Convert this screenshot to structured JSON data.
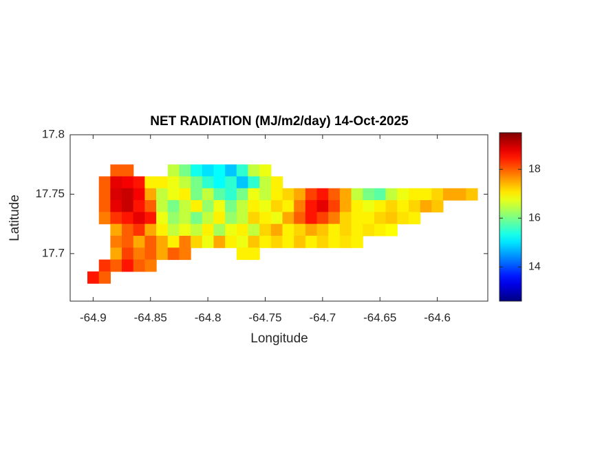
{
  "chart_data": {
    "type": "heatmap",
    "title": "NET RADIATION (MJ/m2/day) 14-Oct-2025",
    "xlabel": "Longitude",
    "ylabel": "Latitude",
    "xlim": [
      -64.92,
      -64.556
    ],
    "ylim": [
      17.66,
      17.8
    ],
    "xticks": [
      -64.9,
      -64.85,
      -64.8,
      -64.75,
      -64.7,
      -64.65,
      -64.6
    ],
    "yticks": [
      17.7,
      17.75,
      17.8
    ],
    "colormap": "jet",
    "clim": [
      12.6,
      19.5
    ],
    "colorbar_ticks": [
      14,
      16,
      18
    ],
    "grid": false,
    "x": [
      -64.9,
      -64.89,
      -64.88,
      -64.87,
      -64.86,
      -64.85,
      -64.84,
      -64.83,
      -64.82,
      -64.81,
      -64.8,
      -64.79,
      -64.78,
      -64.77,
      -64.76,
      -64.75,
      -64.74,
      -64.73,
      -64.72,
      -64.71,
      -64.7,
      -64.69,
      -64.68,
      -64.67,
      -64.66,
      -64.65,
      -64.64,
      -64.63,
      -64.62,
      -64.61,
      -64.6,
      -64.59,
      -64.58,
      -64.57,
      -64.56
    ],
    "y": [
      17.77,
      17.76,
      17.75,
      17.74,
      17.73,
      17.72,
      17.71,
      17.7,
      17.69,
      17.68
    ],
    "z": [
      [
        null,
        null,
        18,
        18,
        null,
        null,
        null,
        16.5,
        16,
        15.3,
        15,
        15.2,
        14.8,
        15.5,
        16.5,
        16.8,
        null,
        null,
        null,
        null,
        null,
        null,
        null,
        null,
        null,
        null,
        null,
        null,
        null,
        null,
        null,
        null,
        null,
        null,
        null
      ],
      [
        null,
        18,
        18.8,
        18.7,
        18.5,
        17,
        17,
        16.8,
        16.5,
        16,
        15.5,
        15.2,
        15.5,
        14.8,
        15.5,
        16.5,
        17,
        null,
        null,
        null,
        null,
        null,
        null,
        null,
        null,
        null,
        null,
        null,
        null,
        null,
        null,
        null,
        null,
        null,
        null
      ],
      [
        null,
        18,
        18.9,
        19,
        18.7,
        17.5,
        16.5,
        16.8,
        17,
        16,
        16.5,
        15.8,
        15.5,
        16,
        16.8,
        16.5,
        17,
        17.2,
        17.5,
        18.2,
        18.5,
        18,
        17.5,
        16.5,
        16,
        15.8,
        16.5,
        16.8,
        17,
        17,
        17.2,
        17.5,
        17.5,
        17.3,
        null
      ],
      [
        null,
        18,
        18.8,
        19,
        18.5,
        18,
        16.5,
        16,
        16.5,
        17,
        16.2,
        16.8,
        16,
        16.5,
        17,
        16.8,
        17.2,
        17,
        17.8,
        18.5,
        18.8,
        18.2,
        17.5,
        17,
        16.8,
        17,
        17.2,
        17,
        17.2,
        17.5,
        17.3,
        null,
        null,
        null,
        null
      ],
      [
        null,
        17.8,
        18.3,
        18.5,
        18.8,
        18.5,
        16.8,
        16.2,
        16.5,
        16,
        16.5,
        17,
        16.2,
        16.5,
        17.2,
        17,
        16.8,
        17.5,
        18,
        18.5,
        18.2,
        17.8,
        17.2,
        17,
        17,
        17.2,
        17.3,
        17.1,
        17,
        null,
        null,
        null,
        null,
        null,
        null
      ],
      [
        null,
        null,
        17.5,
        18,
        18.3,
        17.5,
        17,
        16.5,
        16.8,
        16.5,
        17,
        16.3,
        16.8,
        17,
        16.5,
        17.2,
        17.5,
        17,
        17.2,
        17.5,
        17.3,
        17,
        17.2,
        17,
        17.1,
        17,
        16.9,
        null,
        null,
        null,
        null,
        null,
        null,
        null,
        null
      ],
      [
        null,
        null,
        17.8,
        18,
        17.5,
        18,
        17.5,
        17,
        17.8,
        17.2,
        16.8,
        17.5,
        17,
        16.8,
        17.3,
        17,
        17.2,
        17,
        17.3,
        17,
        17.2,
        17,
        17.1,
        17,
        null,
        null,
        null,
        null,
        null,
        null,
        null,
        null,
        null,
        null,
        null
      ],
      [
        null,
        null,
        17.5,
        18.2,
        17.8,
        18,
        17.5,
        18,
        17.8,
        null,
        null,
        null,
        null,
        17,
        17,
        null,
        null,
        null,
        null,
        null,
        null,
        null,
        null,
        null,
        null,
        null,
        null,
        null,
        null,
        null,
        null,
        null,
        null,
        null,
        null
      ],
      [
        null,
        18.3,
        18,
        18.5,
        18,
        17.8,
        null,
        null,
        null,
        null,
        null,
        null,
        null,
        null,
        null,
        null,
        null,
        null,
        null,
        null,
        null,
        null,
        null,
        null,
        null,
        null,
        null,
        null,
        null,
        null,
        null,
        null,
        null,
        null,
        null
      ],
      [
        18.5,
        18,
        null,
        null,
        null,
        null,
        null,
        null,
        null,
        null,
        null,
        null,
        null,
        null,
        null,
        null,
        null,
        null,
        null,
        null,
        null,
        null,
        null,
        null,
        null,
        null,
        null,
        null,
        null,
        null,
        null,
        null,
        null,
        null,
        null
      ]
    ]
  }
}
